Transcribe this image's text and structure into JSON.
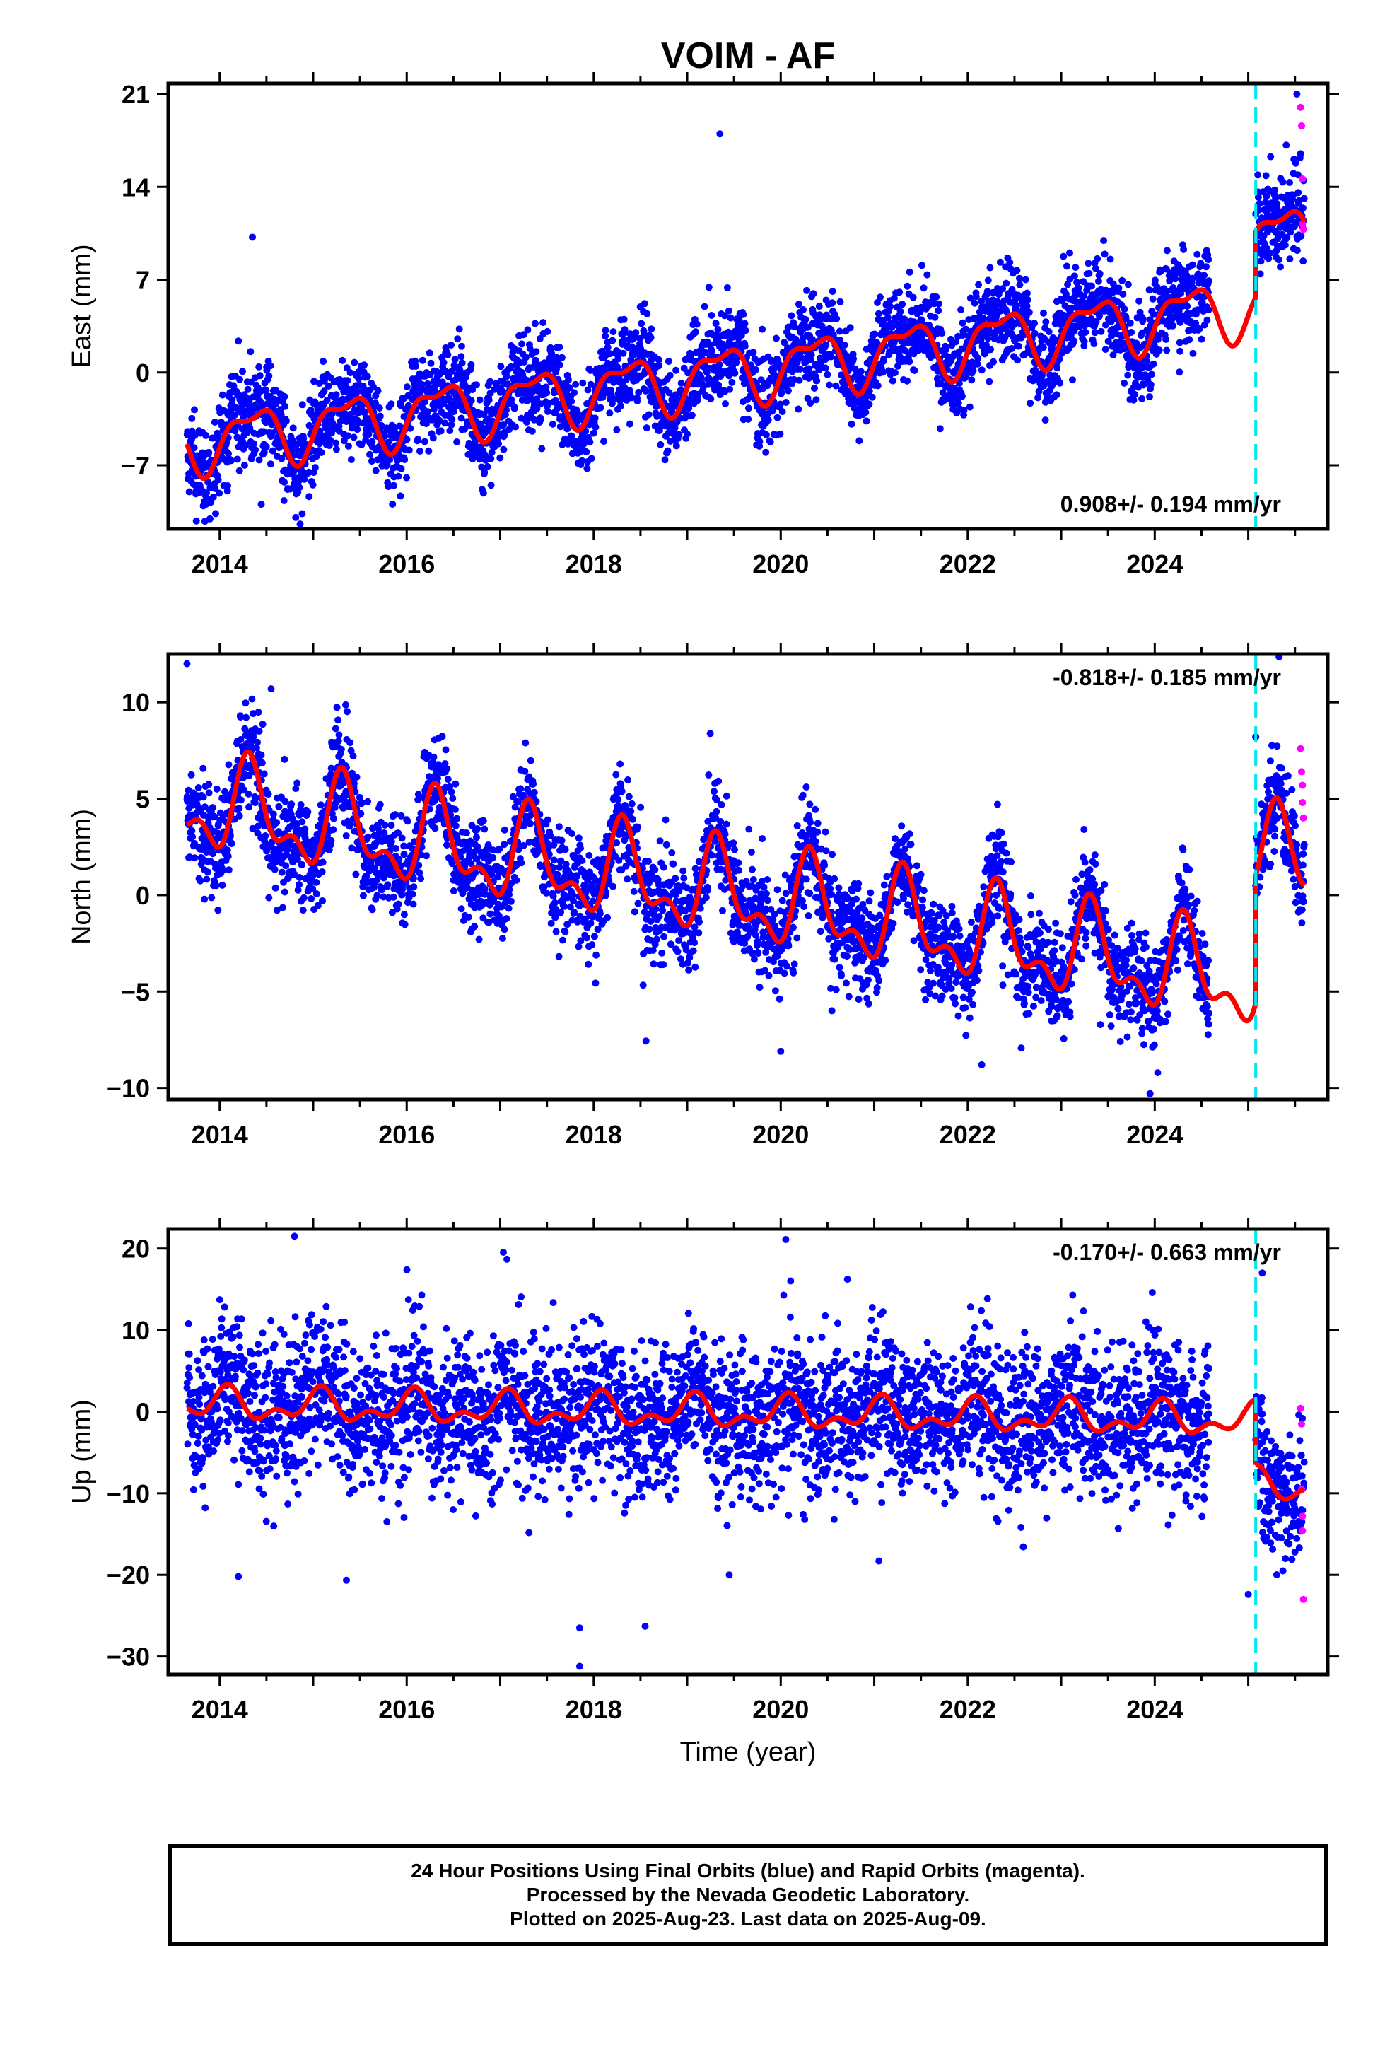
{
  "title": "VOIM - AF",
  "xlabel": "Time (year)",
  "x_ticks": [
    2014,
    2016,
    2018,
    2020,
    2022,
    2024
  ],
  "x_range": [
    2013.45,
    2025.85
  ],
  "event_line_year": 2025.08,
  "colors": {
    "final_orbits": "#0000ff",
    "rapid_orbits": "#ff00ff",
    "model_fit": "#ff0000",
    "event_line": "#00e5ee"
  },
  "caption": {
    "line1": "24 Hour Positions Using Final Orbits (blue) and Rapid Orbits (magenta).",
    "line2": "Processed by the Nevada Geodetic Laboratory.",
    "line3": "Plotted on 2025-Aug-23. Last data on 2025-Aug-09."
  },
  "chart_data": [
    {
      "type": "scatter",
      "component": "east",
      "ylabel": "East (mm)",
      "ylim": [
        -11.8,
        21.8
      ],
      "y_ticks": [
        -7,
        0,
        7,
        14,
        21
      ],
      "y_tick_labels": [
        "−7",
        "0",
        "7",
        "14",
        "21"
      ],
      "velocity_label": "0.908+/- 0.194 mm/yr",
      "velocity_position": "bottom-right",
      "data_start": 2013.65,
      "data_end": 2025.6,
      "gap_start": 2024.58,
      "gap_end": 2025.08,
      "offset_step_mm": 5.0,
      "fit": {
        "intercept_2014": -5.0,
        "rate_mm_per_yr": 0.908,
        "annual_sin": 1.6,
        "annual_cos": -1.2,
        "semiannual_sin": 0.7,
        "semiannual_cos": 0.5
      },
      "scatter_sd": 1.7,
      "outliers": [
        {
          "x": 2019.35,
          "y": 18.0
        },
        {
          "x": 2014.35,
          "y": 10.2
        },
        {
          "x": 2013.75,
          "y": -11.2
        },
        {
          "x": 2025.52,
          "y": 21.0
        }
      ],
      "rapid_points": [
        {
          "x": 2025.56,
          "y": 20.0
        },
        {
          "x": 2025.57,
          "y": 18.6
        },
        {
          "x": 2025.58,
          "y": 14.6
        },
        {
          "x": 2025.58,
          "y": 11.2
        },
        {
          "x": 2025.59,
          "y": 10.8
        }
      ]
    },
    {
      "type": "scatter",
      "component": "north",
      "ylabel": "North (mm)",
      "ylim": [
        -10.6,
        12.5
      ],
      "y_ticks": [
        -10,
        -5,
        0,
        5,
        10
      ],
      "y_tick_labels": [
        "−10",
        "−5",
        "0",
        "5",
        "10"
      ],
      "velocity_label": "-0.818+/- 0.185 mm/yr",
      "velocity_position": "top-right",
      "data_start": 2013.65,
      "data_end": 2025.6,
      "gap_start": 2024.58,
      "gap_end": 2025.08,
      "offset_step_mm": 6.6,
      "fit": {
        "intercept_2014": 4.5,
        "rate_mm_per_yr": -0.818,
        "annual_sin": 1.8,
        "annual_cos": -1.0,
        "semiannual_sin": -0.6,
        "semiannual_cos": -1.0
      },
      "scatter_sd": 1.3,
      "outliers": [
        {
          "x": 2013.65,
          "y": 12.0
        },
        {
          "x": 2014.55,
          "y": 10.7
        },
        {
          "x": 2023.95,
          "y": -10.3
        },
        {
          "x": 2020.0,
          "y": -8.1
        },
        {
          "x": 2022.15,
          "y": -8.8
        },
        {
          "x": 2025.08,
          "y": 8.2
        }
      ],
      "rapid_points": [
        {
          "x": 2025.56,
          "y": 7.6
        },
        {
          "x": 2025.57,
          "y": 6.4
        },
        {
          "x": 2025.58,
          "y": 5.7
        },
        {
          "x": 2025.58,
          "y": 4.8
        },
        {
          "x": 2025.59,
          "y": 4.0
        }
      ]
    },
    {
      "type": "scatter",
      "component": "up",
      "ylabel": "Up (mm)",
      "ylim": [
        -32.2,
        22.4
      ],
      "y_ticks": [
        -30,
        -20,
        -10,
        0,
        10,
        20
      ],
      "y_tick_labels": [
        "−30",
        "−20",
        "−10",
        "0",
        "10",
        "20"
      ],
      "velocity_label": "-0.170+/- 0.663 mm/yr",
      "velocity_position": "top-right",
      "data_start": 2013.65,
      "data_end": 2025.6,
      "gap_start": 2024.58,
      "gap_end": 2025.08,
      "offset_step_mm": -8.0,
      "fit": {
        "intercept_2014": 0.8,
        "rate_mm_per_yr": -0.17,
        "annual_sin": 0.6,
        "annual_cos": 1.4,
        "semiannual_sin": 1.0,
        "semiannual_cos": 0.4
      },
      "scatter_sd": 4.5,
      "outliers": [
        {
          "x": 2014.8,
          "y": 21.5
        },
        {
          "x": 2014.2,
          "y": -20.2
        },
        {
          "x": 2017.85,
          "y": -31.2
        },
        {
          "x": 2017.85,
          "y": -26.5
        },
        {
          "x": 2018.55,
          "y": -26.3
        },
        {
          "x": 2019.45,
          "y": -20.0
        },
        {
          "x": 2021.05,
          "y": -18.3
        },
        {
          "x": 2025.0,
          "y": -22.4
        },
        {
          "x": 2025.15,
          "y": 17.0
        }
      ],
      "rapid_points": [
        {
          "x": 2025.56,
          "y": 0.4
        },
        {
          "x": 2025.57,
          "y": -1.5
        },
        {
          "x": 2025.57,
          "y": -9.5
        },
        {
          "x": 2025.58,
          "y": -12.8
        },
        {
          "x": 2025.58,
          "y": -14.6
        },
        {
          "x": 2025.59,
          "y": -23.0
        }
      ]
    }
  ]
}
